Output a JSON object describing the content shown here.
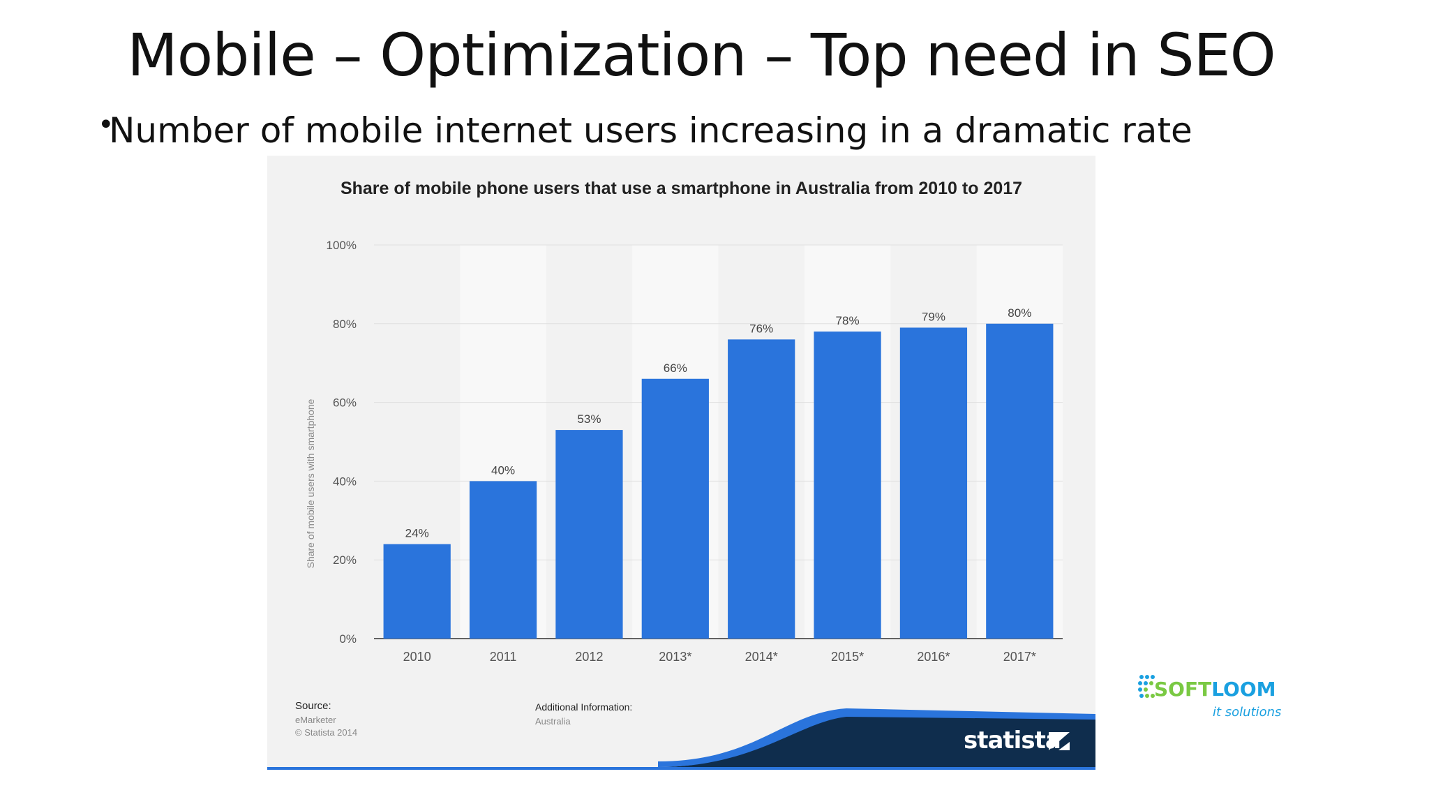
{
  "slide": {
    "title": "Mobile – Optimization – Top need in SEO",
    "bullet": "Number of mobile internet users increasing in a dramatic rate"
  },
  "chart_data": {
    "type": "bar",
    "title": "Share of mobile phone users that use a smartphone in Australia from 2010 to 2017",
    "categories": [
      "2010",
      "2011",
      "2012",
      "2013*",
      "2014*",
      "2015*",
      "2016*",
      "2017*"
    ],
    "values": [
      24,
      40,
      53,
      66,
      76,
      78,
      79,
      80
    ],
    "data_labels": [
      "24%",
      "40%",
      "53%",
      "66%",
      "76%",
      "78%",
      "79%",
      "80%"
    ],
    "ylabel": "Share of mobile users with smartphone",
    "xlabel": "",
    "ylim": [
      0,
      100
    ],
    "yticks": [
      "0%",
      "20%",
      "40%",
      "60%",
      "80%",
      "100%"
    ],
    "ytick_values": [
      0,
      20,
      40,
      60,
      80,
      100
    ],
    "grid": true,
    "bar_color": "#2a74dc"
  },
  "footer": {
    "source_label": "Source:",
    "source_lines": [
      "eMarketer",
      "© Statista 2014"
    ],
    "additional_label": "Additional Information:",
    "additional_value": "Australia",
    "brand": "statista"
  },
  "logo": {
    "part1": "SOFT",
    "part2": "LOOM",
    "tagline": "it solutions",
    "color1": "#7ac943",
    "color2": "#1aa0e0"
  }
}
